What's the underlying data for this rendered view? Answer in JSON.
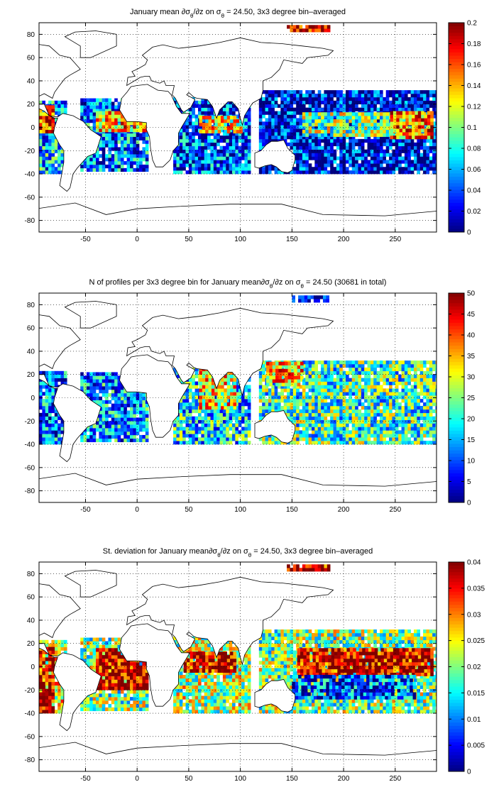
{
  "chart_data": [
    {
      "type": "heatmap",
      "title": "January mean ∂σθ/∂z on σθ = 24.50, 3x3 degree bin–averaged",
      "title_parts": [
        {
          "t": "January mean ∂σ",
          "sub": false
        },
        {
          "t": "θ",
          "sub": true
        },
        {
          "t": "/∂z on σ",
          "sub": false
        },
        {
          "t": "θ",
          "sub": true
        },
        {
          "t": " = 24.50, 3x3 degree bin–averaged",
          "sub": false
        }
      ],
      "colormap": "jet",
      "xlim": [
        -95,
        290
      ],
      "ylim": [
        -90,
        90
      ],
      "x_ticks": [
        -50,
        0,
        50,
        100,
        150,
        200,
        250
      ],
      "y_ticks": [
        80,
        60,
        40,
        20,
        0,
        -20,
        -40,
        -60,
        -80
      ],
      "colorbar": {
        "min": 0,
        "max": 0.2,
        "ticks": [
          "0",
          "0.02",
          "0.04",
          "0.06",
          "0.08",
          "0.1",
          "0.12",
          "0.14",
          "0.16",
          "0.18",
          "0.2"
        ]
      },
      "grid": true,
      "bin_size_deg": 3,
      "regions": [
        {
          "lon": [
            -95,
            -70
          ],
          "lat": [
            -40,
            22
          ],
          "v": 0.06
        },
        {
          "lon": [
            -95,
            -80
          ],
          "lat": [
            -5,
            18
          ],
          "v": 0.17
        },
        {
          "lon": [
            -55,
            10
          ],
          "lat": [
            -38,
            24
          ],
          "v": 0.05
        },
        {
          "lon": [
            -40,
            10
          ],
          "lat": [
            -4,
            14
          ],
          "v": 0.14
        },
        {
          "lon": [
            35,
            110
          ],
          "lat": [
            -40,
            24
          ],
          "v": 0.04
        },
        {
          "lon": [
            60,
            100
          ],
          "lat": [
            -5,
            8
          ],
          "v": 0.12
        },
        {
          "lon": [
            118,
            290
          ],
          "lat": [
            -40,
            30
          ],
          "v": 0.02
        },
        {
          "lon": [
            160,
            285
          ],
          "lat": [
            -8,
            12
          ],
          "v": 0.1
        },
        {
          "lon": [
            245,
            285
          ],
          "lat": [
            -10,
            12
          ],
          "v": 0.15
        },
        {
          "lon": [
            145,
            185
          ],
          "lat": [
            82,
            88
          ],
          "v": 0.19
        }
      ]
    },
    {
      "type": "heatmap",
      "title": "N of profiles per 3x3 degree bin for January mean∂σθ/∂z on σθ = 24.50 (30681 in total)",
      "title_parts": [
        {
          "t": "N of profiles per 3x3 degree bin for January mean∂σ",
          "sub": false
        },
        {
          "t": "θ",
          "sub": true
        },
        {
          "t": "/∂z on σ",
          "sub": false
        },
        {
          "t": "θ",
          "sub": true
        },
        {
          "t": " = 24.50 (30681 in total)",
          "sub": false
        }
      ],
      "colormap": "jet",
      "xlim": [
        -95,
        290
      ],
      "ylim": [
        -90,
        90
      ],
      "x_ticks": [
        -50,
        0,
        50,
        100,
        150,
        200,
        250
      ],
      "y_ticks": [
        80,
        60,
        40,
        20,
        0,
        -20,
        -40,
        -60,
        -80
      ],
      "colorbar": {
        "min": 0,
        "max": 50,
        "ticks": [
          "0",
          "5",
          "10",
          "15",
          "20",
          "25",
          "30",
          "35",
          "40",
          "45",
          "50"
        ]
      },
      "grid": true,
      "bin_size_deg": 3,
      "regions": [
        {
          "lon": [
            -95,
            -70
          ],
          "lat": [
            -40,
            22
          ],
          "v": 12
        },
        {
          "lon": [
            -55,
            10
          ],
          "lat": [
            -38,
            22
          ],
          "v": 14
        },
        {
          "lon": [
            35,
            110
          ],
          "lat": [
            -40,
            26
          ],
          "v": 18
        },
        {
          "lon": [
            60,
            95
          ],
          "lat": [
            -10,
            25
          ],
          "v": 32
        },
        {
          "lon": [
            118,
            290
          ],
          "lat": [
            -40,
            30
          ],
          "v": 22
        },
        {
          "lon": [
            125,
            160
          ],
          "lat": [
            10,
            30
          ],
          "v": 35
        },
        {
          "lon": [
            150,
            185
          ],
          "lat": [
            82,
            88
          ],
          "v": 6
        }
      ]
    },
    {
      "type": "heatmap",
      "title": "St. deviation for January mean∂σθ/∂z on σθ = 24.50, 3x3 degree bin–averaged",
      "title_parts": [
        {
          "t": "St. deviation for January mean∂σ",
          "sub": false
        },
        {
          "t": "θ",
          "sub": true
        },
        {
          "t": "/∂z on σ",
          "sub": false
        },
        {
          "t": "θ",
          "sub": true
        },
        {
          "t": " = 24.50, 3x3 degree bin–averaged",
          "sub": false
        }
      ],
      "colormap": "jet",
      "xlim": [
        -95,
        290
      ],
      "ylim": [
        -90,
        90
      ],
      "x_ticks": [
        -50,
        0,
        50,
        100,
        150,
        200,
        250
      ],
      "y_ticks": [
        80,
        60,
        40,
        20,
        0,
        -20,
        -40,
        -60,
        -80
      ],
      "colorbar": {
        "min": 0,
        "max": 0.04,
        "ticks": [
          "0",
          "0.005",
          "0.01",
          "0.015",
          "0.02",
          "0.025",
          "0.03",
          "0.035",
          "0.04"
        ]
      },
      "grid": true,
      "bin_size_deg": 3,
      "regions": [
        {
          "lon": [
            -95,
            -70
          ],
          "lat": [
            -40,
            22
          ],
          "v": 0.025
        },
        {
          "lon": [
            -95,
            -82
          ],
          "lat": [
            -40,
            15
          ],
          "v": 0.038
        },
        {
          "lon": [
            -55,
            10
          ],
          "lat": [
            -38,
            24
          ],
          "v": 0.02
        },
        {
          "lon": [
            -40,
            10
          ],
          "lat": [
            -20,
            15
          ],
          "v": 0.038
        },
        {
          "lon": [
            35,
            110
          ],
          "lat": [
            -40,
            24
          ],
          "v": 0.022
        },
        {
          "lon": [
            45,
            95
          ],
          "lat": [
            -5,
            12
          ],
          "v": 0.037
        },
        {
          "lon": [
            118,
            290
          ],
          "lat": [
            -40,
            30
          ],
          "v": 0.02
        },
        {
          "lon": [
            155,
            285
          ],
          "lat": [
            -8,
            15
          ],
          "v": 0.037
        },
        {
          "lon": [
            150,
            270
          ],
          "lat": [
            -28,
            -8
          ],
          "v": 0.008
        },
        {
          "lon": [
            145,
            185
          ],
          "lat": [
            82,
            88
          ],
          "v": 0.038
        }
      ]
    }
  ]
}
